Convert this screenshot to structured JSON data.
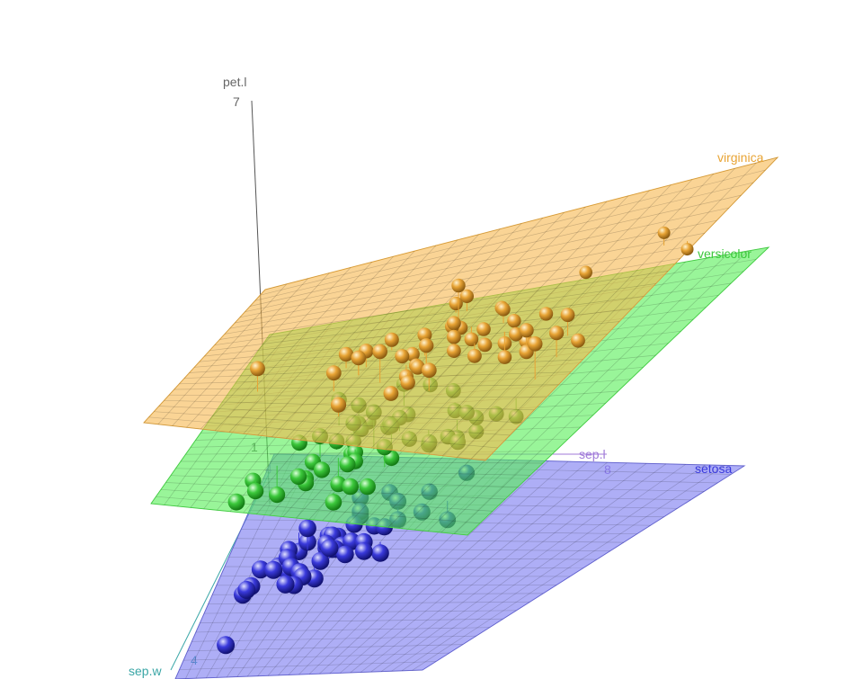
{
  "chart_data": {
    "type": "scatter",
    "projection": "3d",
    "axes": {
      "x": {
        "label": "sep.l",
        "ticks": [
          4,
          8
        ],
        "range": [
          4,
          8
        ],
        "color": "#a07ad8"
      },
      "y": {
        "label": "sep.w",
        "ticks": [
          4
        ],
        "range": [
          1.9,
          4.5
        ],
        "color": "#3aa6a6"
      },
      "z": {
        "label": "pet.l",
        "ticks": [
          1,
          7
        ],
        "range": [
          1,
          7
        ],
        "color": "#666666"
      }
    },
    "grid": false,
    "series": [
      {
        "name": "virginica",
        "color": "#e8a435",
        "plane_color": "#f7b84e",
        "plane_z": {
          "a": 5.0,
          "bx": 0.75,
          "by": 0.25,
          "center": [
            6.0,
            3.2
          ]
        },
        "points": [
          [
            6.3,
            3.3,
            6.0
          ],
          [
            5.8,
            2.7,
            5.1
          ],
          [
            7.1,
            3.0,
            5.9
          ],
          [
            6.3,
            2.9,
            5.6
          ],
          [
            6.5,
            3.0,
            5.8
          ],
          [
            7.6,
            3.0,
            6.6
          ],
          [
            4.9,
            2.5,
            4.5
          ],
          [
            7.3,
            2.9,
            6.3
          ],
          [
            6.7,
            2.5,
            5.8
          ],
          [
            7.2,
            3.6,
            6.1
          ],
          [
            6.5,
            3.2,
            5.1
          ],
          [
            6.4,
            2.7,
            5.3
          ],
          [
            6.8,
            3.0,
            5.5
          ],
          [
            5.7,
            2.5,
            5.0
          ],
          [
            5.8,
            2.8,
            5.1
          ],
          [
            6.4,
            3.2,
            5.3
          ],
          [
            6.5,
            3.0,
            5.5
          ],
          [
            7.7,
            3.8,
            6.7
          ],
          [
            7.7,
            2.6,
            6.9
          ],
          [
            6.0,
            2.2,
            5.0
          ],
          [
            6.9,
            3.2,
            5.7
          ],
          [
            5.6,
            2.8,
            4.9
          ],
          [
            7.7,
            2.8,
            6.7
          ],
          [
            6.3,
            2.7,
            4.9
          ],
          [
            6.7,
            3.3,
            5.7
          ],
          [
            7.2,
            3.2,
            6.0
          ],
          [
            6.2,
            2.8,
            4.8
          ],
          [
            6.1,
            3.0,
            4.9
          ],
          [
            6.4,
            2.8,
            5.6
          ],
          [
            7.2,
            3.0,
            5.8
          ],
          [
            7.4,
            2.8,
            6.1
          ],
          [
            7.9,
            3.8,
            6.4
          ],
          [
            6.4,
            2.8,
            5.6
          ],
          [
            6.3,
            2.8,
            5.1
          ],
          [
            6.1,
            2.6,
            5.6
          ],
          [
            7.7,
            3.0,
            6.1
          ],
          [
            6.3,
            3.4,
            5.6
          ],
          [
            6.4,
            3.1,
            5.5
          ],
          [
            6.0,
            3.0,
            4.8
          ],
          [
            6.9,
            3.1,
            5.4
          ],
          [
            6.7,
            3.1,
            5.6
          ],
          [
            6.9,
            3.1,
            5.1
          ],
          [
            5.8,
            2.7,
            5.1
          ],
          [
            6.8,
            3.2,
            5.9
          ],
          [
            6.7,
            3.3,
            5.7
          ],
          [
            6.7,
            3.0,
            5.2
          ],
          [
            6.3,
            2.5,
            5.0
          ],
          [
            6.5,
            3.0,
            5.2
          ],
          [
            6.2,
            3.4,
            5.4
          ],
          [
            5.9,
            3.0,
            5.1
          ]
        ]
      },
      {
        "name": "versicolor",
        "color": "#3cc83c",
        "plane_color": "#55ee55",
        "plane_z": {
          "a": 4.25,
          "bx": 0.7,
          "by": 0.2,
          "center": [
            5.9,
            2.8
          ]
        },
        "points": [
          [
            7.0,
            3.2,
            4.7
          ],
          [
            6.4,
            3.2,
            4.5
          ],
          [
            6.9,
            3.1,
            4.9
          ],
          [
            5.5,
            2.3,
            4.0
          ],
          [
            6.5,
            2.8,
            4.6
          ],
          [
            5.7,
            2.8,
            4.5
          ],
          [
            6.3,
            3.3,
            4.7
          ],
          [
            4.9,
            2.4,
            3.3
          ],
          [
            6.6,
            2.9,
            4.6
          ],
          [
            5.2,
            2.7,
            3.9
          ],
          [
            5.0,
            2.0,
            3.5
          ],
          [
            5.9,
            3.0,
            4.2
          ],
          [
            6.0,
            2.2,
            4.0
          ],
          [
            6.1,
            2.9,
            4.7
          ],
          [
            5.6,
            2.9,
            3.6
          ],
          [
            6.7,
            3.1,
            4.4
          ],
          [
            5.6,
            3.0,
            4.5
          ],
          [
            5.8,
            2.7,
            4.1
          ],
          [
            6.2,
            2.2,
            4.5
          ],
          [
            5.6,
            2.5,
            3.9
          ],
          [
            5.9,
            3.2,
            4.8
          ],
          [
            6.1,
            2.8,
            4.0
          ],
          [
            6.3,
            2.5,
            4.9
          ],
          [
            6.1,
            2.8,
            4.7
          ],
          [
            6.4,
            2.9,
            4.3
          ],
          [
            6.6,
            3.0,
            4.4
          ],
          [
            6.8,
            2.8,
            4.8
          ],
          [
            6.7,
            3.0,
            5.0
          ],
          [
            6.0,
            2.9,
            4.5
          ],
          [
            5.7,
            2.6,
            3.5
          ],
          [
            5.5,
            2.4,
            3.8
          ],
          [
            5.5,
            2.4,
            3.7
          ],
          [
            5.8,
            2.7,
            3.9
          ],
          [
            6.0,
            2.7,
            5.1
          ],
          [
            5.4,
            3.0,
            4.5
          ],
          [
            6.0,
            3.4,
            4.5
          ],
          [
            6.7,
            3.1,
            4.7
          ],
          [
            6.3,
            2.3,
            4.4
          ],
          [
            5.6,
            3.0,
            4.1
          ],
          [
            5.5,
            2.5,
            4.0
          ],
          [
            5.5,
            2.6,
            4.4
          ],
          [
            6.1,
            3.0,
            4.6
          ],
          [
            5.8,
            2.6,
            4.0
          ],
          [
            5.0,
            2.3,
            3.3
          ],
          [
            5.6,
            2.7,
            4.2
          ],
          [
            5.7,
            3.0,
            4.2
          ],
          [
            5.7,
            2.9,
            4.2
          ],
          [
            6.2,
            2.9,
            4.3
          ],
          [
            5.1,
            2.5,
            3.0
          ],
          [
            5.7,
            2.8,
            4.1
          ]
        ]
      },
      {
        "name": "setosa",
        "color": "#3a3adc",
        "plane_color": "#7878f0",
        "plane_z": {
          "a": 1.46,
          "bx": 0.15,
          "by": 0.05,
          "center": [
            5.0,
            3.4
          ]
        },
        "points": [
          [
            5.1,
            3.5,
            1.4
          ],
          [
            4.9,
            3.0,
            1.4
          ],
          [
            4.7,
            3.2,
            1.3
          ],
          [
            4.6,
            3.1,
            1.5
          ],
          [
            5.0,
            3.6,
            1.4
          ],
          [
            5.4,
            3.9,
            1.7
          ],
          [
            4.6,
            3.4,
            1.4
          ],
          [
            5.0,
            3.4,
            1.5
          ],
          [
            4.4,
            2.9,
            1.4
          ],
          [
            4.9,
            3.1,
            1.5
          ],
          [
            5.4,
            3.7,
            1.5
          ],
          [
            4.8,
            3.4,
            1.6
          ],
          [
            4.8,
            3.0,
            1.4
          ],
          [
            4.3,
            3.0,
            1.1
          ],
          [
            5.8,
            4.0,
            1.2
          ],
          [
            5.7,
            4.4,
            1.5
          ],
          [
            5.4,
            3.9,
            1.3
          ],
          [
            5.1,
            3.5,
            1.4
          ],
          [
            5.7,
            3.8,
            1.7
          ],
          [
            5.1,
            3.8,
            1.5
          ],
          [
            5.4,
            3.4,
            1.7
          ],
          [
            5.1,
            3.7,
            1.5
          ],
          [
            4.6,
            3.6,
            1.0
          ],
          [
            5.1,
            3.3,
            1.7
          ],
          [
            4.8,
            3.4,
            1.9
          ],
          [
            5.0,
            3.0,
            1.6
          ],
          [
            5.0,
            3.4,
            1.6
          ],
          [
            5.2,
            3.5,
            1.5
          ],
          [
            5.2,
            3.4,
            1.4
          ],
          [
            4.7,
            3.2,
            1.6
          ],
          [
            4.8,
            3.1,
            1.6
          ],
          [
            5.4,
            3.4,
            1.5
          ],
          [
            5.2,
            4.1,
            1.5
          ],
          [
            5.5,
            4.2,
            1.4
          ],
          [
            4.9,
            3.1,
            1.5
          ],
          [
            5.0,
            3.2,
            1.2
          ],
          [
            5.5,
            3.5,
            1.3
          ],
          [
            4.9,
            3.6,
            1.4
          ],
          [
            4.4,
            3.0,
            1.3
          ],
          [
            5.1,
            3.4,
            1.5
          ],
          [
            5.0,
            3.5,
            1.3
          ],
          [
            4.5,
            2.3,
            1.3
          ],
          [
            4.4,
            3.2,
            1.3
          ],
          [
            5.0,
            3.5,
            1.6
          ],
          [
            5.1,
            3.8,
            1.9
          ],
          [
            4.8,
            3.0,
            1.4
          ],
          [
            5.1,
            3.8,
            1.6
          ],
          [
            4.6,
            3.2,
            1.4
          ],
          [
            5.3,
            3.7,
            1.5
          ],
          [
            5.0,
            3.3,
            1.4
          ]
        ]
      }
    ]
  }
}
